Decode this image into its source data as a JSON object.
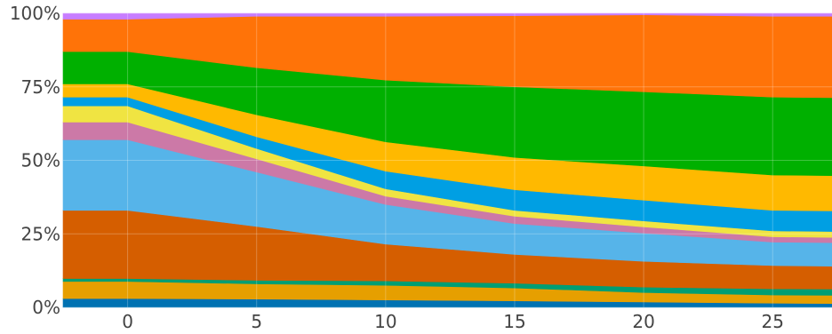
{
  "chart_data": {
    "type": "area",
    "stacked": true,
    "normalized": true,
    "grid": true,
    "legend": "none",
    "x": [
      -2.5,
      0,
      5,
      10,
      15,
      20,
      25,
      27.3
    ],
    "xlim": [
      -2.5,
      27.3
    ],
    "ylim": [
      0,
      100
    ],
    "x_ticks": [
      0,
      5,
      10,
      15,
      20,
      25
    ],
    "x_tick_labels": [
      "0",
      "5",
      "10",
      "15",
      "20",
      "25"
    ],
    "y_ticks": [
      0,
      25,
      50,
      75,
      100
    ],
    "y_tick_labels": [
      "0%",
      "25%",
      "50%",
      "75%",
      "100%"
    ],
    "series": [
      {
        "color": "#0072B2",
        "values": [
          3.0,
          3.0,
          2.8,
          2.5,
          2.2,
          1.8,
          1.4,
          1.3
        ]
      },
      {
        "color": "#E69F00",
        "values": [
          5.8,
          5.8,
          5.2,
          5.0,
          4.4,
          3.2,
          2.8,
          2.8
        ]
      },
      {
        "color": "#009E73",
        "values": [
          1.0,
          1.0,
          1.2,
          1.5,
          1.6,
          1.8,
          2.1,
          2.1
        ]
      },
      {
        "color": "#D55E00",
        "values": [
          23.2,
          23.2,
          18.3,
          12.5,
          9.8,
          8.7,
          7.9,
          7.8
        ]
      },
      {
        "color": "#56B4E9",
        "values": [
          24.0,
          24.0,
          18.5,
          13.5,
          10.5,
          9.5,
          8.0,
          8.0
        ]
      },
      {
        "color": "#CC79A7",
        "values": [
          6.0,
          6.0,
          4.5,
          2.8,
          2.5,
          2.1,
          1.8,
          1.8
        ]
      },
      {
        "color": "#F0E442",
        "values": [
          5.5,
          5.5,
          3.5,
          2.5,
          2.0,
          2.0,
          2.0,
          2.0
        ]
      },
      {
        "color": "#009FE3",
        "values": [
          3.0,
          3.0,
          4.0,
          6.0,
          7.0,
          7.0,
          7.0,
          7.0
        ]
      },
      {
        "color": "#FFB900",
        "values": [
          4.5,
          4.5,
          7.5,
          10.0,
          11.0,
          11.5,
          12.0,
          12.0
        ]
      },
      {
        "color": "#00B000",
        "values": [
          11.0,
          11.0,
          16.0,
          21.0,
          24.0,
          25.0,
          26.5,
          26.5
        ]
      },
      {
        "color": "#FF7308",
        "values": [
          11.0,
          11.0,
          17.5,
          21.7,
          24.2,
          25.9,
          27.5,
          27.7
        ]
      },
      {
        "color": "#C77DFF",
        "values": [
          2.0,
          2.0,
          1.0,
          1.0,
          0.8,
          0.5,
          1.0,
          1.0
        ]
      }
    ]
  }
}
